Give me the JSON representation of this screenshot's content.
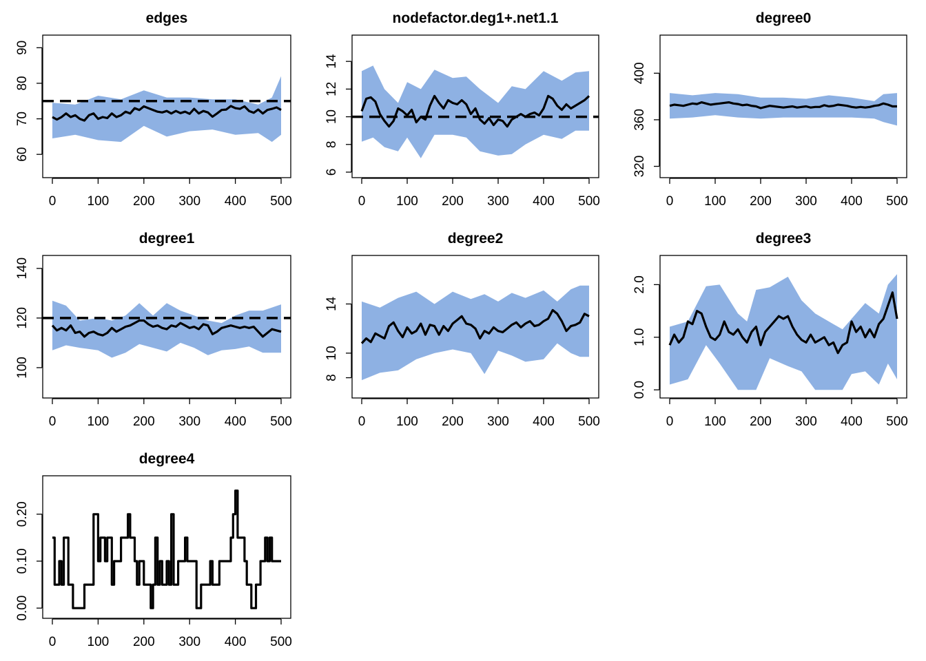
{
  "chart_data": [
    {
      "type": "line",
      "title": "edges",
      "xlim": [
        0,
        500
      ],
      "ylim": [
        55,
        92
      ],
      "x_ticks": [
        "0",
        "100",
        "200",
        "300",
        "400",
        "500"
      ],
      "y_ticks": [
        "60",
        "70",
        "80",
        "90"
      ],
      "target": 75,
      "colors": {
        "band": "#8eb1e3",
        "line": "#000000",
        "target": "#000000"
      },
      "band_x": [
        0,
        50,
        100,
        150,
        200,
        250,
        300,
        350,
        400,
        450,
        480,
        500
      ],
      "band_upper": [
        74.5,
        74,
        76.5,
        75.5,
        78,
        76,
        76,
        75.5,
        75.5,
        74,
        76,
        82
      ],
      "band_lower": [
        64.5,
        65.5,
        64,
        63.5,
        68,
        65,
        66.5,
        67,
        65.5,
        66,
        63.5,
        65.5
      ],
      "series_x": [
        0,
        10,
        20,
        30,
        40,
        50,
        60,
        70,
        80,
        90,
        100,
        110,
        120,
        130,
        140,
        150,
        160,
        170,
        180,
        190,
        200,
        210,
        220,
        230,
        240,
        250,
        260,
        270,
        280,
        290,
        300,
        310,
        320,
        330,
        340,
        350,
        360,
        370,
        380,
        390,
        400,
        410,
        420,
        430,
        440,
        450,
        460,
        470,
        480,
        490,
        500
      ],
      "series_y": [
        70.5,
        69.8,
        70.5,
        71.5,
        70.5,
        71,
        70,
        69.5,
        71,
        71.5,
        70,
        70.5,
        70.2,
        71.5,
        70.5,
        71,
        72,
        71.5,
        73,
        72.5,
        73.5,
        73,
        72.5,
        72,
        71.8,
        72.2,
        71.5,
        72.2,
        71.6,
        72,
        71.4,
        72.8,
        71.5,
        72.2,
        71.8,
        70.6,
        71.5,
        72.5,
        72.6,
        73.6,
        73,
        72.8,
        73.5,
        72.2,
        71.7,
        72.6,
        71.5,
        72.5,
        72.8,
        73.2,
        72.5
      ]
    },
    {
      "type": "line",
      "title": "nodefactor.deg1+.net1.1",
      "xlim": [
        0,
        500
      ],
      "ylim": [
        6,
        15.5
      ],
      "x_ticks": [
        "0",
        "100",
        "200",
        "300",
        "400",
        "500"
      ],
      "y_ticks": [
        "6",
        "8",
        "10",
        "12",
        "14"
      ],
      "target": 10,
      "colors": {
        "band": "#8eb1e3",
        "line": "#000000",
        "target": "#000000"
      },
      "band_x": [
        0,
        25,
        50,
        80,
        100,
        130,
        160,
        200,
        230,
        260,
        300,
        330,
        360,
        400,
        440,
        470,
        500
      ],
      "band_upper": [
        13.3,
        13.7,
        12,
        11,
        12.5,
        12,
        13.4,
        12.8,
        12.9,
        12,
        11,
        12.2,
        12,
        13.3,
        12.6,
        13.2,
        13.3
      ],
      "band_lower": [
        8.2,
        8.5,
        7.8,
        7.5,
        8.5,
        7,
        8.7,
        8.7,
        8.5,
        7.5,
        7.2,
        7.3,
        8,
        8.7,
        8.4,
        9,
        9
      ],
      "series_x": [
        0,
        10,
        20,
        30,
        40,
        50,
        60,
        70,
        80,
        90,
        100,
        110,
        120,
        130,
        140,
        150,
        160,
        170,
        180,
        190,
        200,
        210,
        220,
        230,
        240,
        250,
        260,
        270,
        280,
        290,
        300,
        310,
        320,
        330,
        340,
        350,
        360,
        370,
        380,
        390,
        400,
        410,
        420,
        430,
        440,
        450,
        460,
        470,
        480,
        490,
        500
      ],
      "series_y": [
        10.4,
        11.3,
        11.4,
        11.1,
        10.2,
        9.7,
        9.3,
        9.7,
        10.6,
        10.4,
        10.1,
        10.5,
        9.6,
        10,
        9.8,
        10.8,
        11.5,
        11,
        10.6,
        11.2,
        11,
        10.9,
        11.2,
        10.9,
        10.2,
        10.6,
        9.8,
        9.5,
        9.9,
        9.4,
        9.8,
        9.7,
        9.3,
        9.8,
        10,
        10.2,
        10,
        10.2,
        10.3,
        10.1,
        10.6,
        11.5,
        11.3,
        10.8,
        10.5,
        10.9,
        10.6,
        10.8,
        11,
        11.2,
        11.5
      ]
    },
    {
      "type": "line",
      "title": "degree0",
      "xlim": [
        0,
        500
      ],
      "ylim": [
        315,
        428
      ],
      "x_ticks": [
        "0",
        "100",
        "200",
        "300",
        "400",
        "500"
      ],
      "y_ticks": [
        "320",
        "360",
        "400"
      ],
      "target": null,
      "colors": {
        "band": "#8eb1e3",
        "line": "#000000",
        "target": "#000000"
      },
      "band_x": [
        0,
        50,
        100,
        150,
        200,
        250,
        300,
        350,
        400,
        450,
        470,
        500
      ],
      "band_upper": [
        383,
        381,
        383,
        382,
        379,
        379,
        378,
        381,
        379,
        376,
        382,
        383
      ],
      "band_lower": [
        361,
        362,
        364,
        362,
        361,
        362,
        362,
        362,
        362,
        361,
        358,
        355
      ],
      "series_x": [
        0,
        10,
        20,
        30,
        40,
        50,
        60,
        70,
        80,
        90,
        100,
        110,
        120,
        130,
        140,
        150,
        160,
        170,
        180,
        190,
        200,
        210,
        220,
        230,
        240,
        250,
        260,
        270,
        280,
        290,
        300,
        310,
        320,
        330,
        340,
        350,
        360,
        370,
        380,
        390,
        400,
        410,
        420,
        430,
        440,
        450,
        460,
        470,
        480,
        490,
        500
      ],
      "series_y": [
        372,
        373,
        372.5,
        372,
        373,
        374,
        373.5,
        375,
        374,
        373,
        373.5,
        374,
        374.5,
        375,
        374,
        373.5,
        372.5,
        373,
        372,
        371.5,
        370,
        371,
        372,
        371.5,
        371,
        370.5,
        371,
        371.5,
        370.5,
        371,
        371.5,
        370.5,
        371,
        371,
        372.5,
        371.5,
        372,
        373,
        372.5,
        372,
        371,
        370.5,
        371,
        370.5,
        371,
        372,
        372.5,
        374,
        373,
        371.5,
        371.5
      ]
    },
    {
      "type": "line",
      "title": "degree1",
      "xlim": [
        0,
        500
      ],
      "ylim": [
        90,
        143
      ],
      "x_ticks": [
        "0",
        "100",
        "200",
        "300",
        "400",
        "500"
      ],
      "y_ticks": [
        "100",
        "120",
        "140"
      ],
      "target": 120,
      "colors": {
        "band": "#8eb1e3",
        "line": "#000000",
        "target": "#000000"
      },
      "band_x": [
        0,
        30,
        60,
        100,
        130,
        160,
        190,
        220,
        250,
        280,
        310,
        340,
        370,
        400,
        430,
        460,
        500
      ],
      "band_upper": [
        127,
        125,
        119,
        120,
        119,
        121,
        126,
        121,
        126,
        123,
        121,
        119,
        118,
        121,
        123,
        123,
        125.5
      ],
      "band_lower": [
        107,
        109,
        108,
        107,
        104,
        106,
        109.5,
        108,
        106.5,
        110,
        108,
        105,
        107,
        107.5,
        108.5,
        106,
        106
      ],
      "series_x": [
        0,
        10,
        20,
        30,
        40,
        50,
        60,
        70,
        80,
        90,
        100,
        110,
        120,
        130,
        140,
        150,
        160,
        170,
        180,
        190,
        200,
        210,
        220,
        230,
        240,
        250,
        260,
        270,
        280,
        290,
        300,
        310,
        320,
        330,
        340,
        350,
        360,
        370,
        380,
        390,
        400,
        410,
        420,
        430,
        440,
        450,
        460,
        470,
        480,
        490,
        500
      ],
      "series_y": [
        117,
        115,
        116,
        115,
        117,
        114,
        114.5,
        112.5,
        114,
        114.5,
        113.5,
        113,
        114,
        116,
        114.5,
        115.5,
        116.5,
        117,
        118,
        119,
        119,
        117.5,
        116.5,
        117,
        116,
        115.5,
        117,
        116.5,
        118,
        117,
        116,
        116.5,
        115.5,
        117.5,
        117,
        113.5,
        114.5,
        116,
        116.5,
        117,
        116.5,
        116,
        116.5,
        116,
        116.5,
        114.5,
        112.5,
        114,
        115.5,
        115,
        114.5
      ]
    },
    {
      "type": "line",
      "title": "degree2",
      "xlim": [
        0,
        500
      ],
      "ylim": [
        6.8,
        17.5
      ],
      "x_ticks": [
        "0",
        "100",
        "200",
        "300",
        "400",
        "500"
      ],
      "y_ticks": [
        "8",
        "10",
        "14"
      ],
      "target": null,
      "colors": {
        "band": "#8eb1e3",
        "line": "#000000",
        "target": "#000000"
      },
      "band_x": [
        0,
        40,
        80,
        120,
        160,
        200,
        240,
        270,
        300,
        330,
        360,
        400,
        430,
        460,
        480,
        500
      ],
      "band_upper": [
        14.2,
        13.7,
        14.5,
        15,
        14,
        15,
        14.4,
        14.8,
        14.2,
        14.9,
        14.5,
        15.1,
        14.2,
        15.2,
        15.5,
        15.5
      ],
      "band_lower": [
        7.8,
        8.4,
        8.6,
        9.5,
        10,
        10.3,
        10,
        8.3,
        10.2,
        9.8,
        9.3,
        9.5,
        10.8,
        10,
        9.7,
        9.7
      ],
      "series_x": [
        0,
        10,
        20,
        30,
        40,
        50,
        60,
        70,
        80,
        90,
        100,
        110,
        120,
        130,
        140,
        150,
        160,
        170,
        180,
        190,
        200,
        210,
        220,
        230,
        240,
        250,
        260,
        270,
        280,
        290,
        300,
        310,
        320,
        330,
        340,
        350,
        360,
        370,
        380,
        390,
        400,
        410,
        420,
        430,
        440,
        450,
        460,
        470,
        480,
        490,
        500
      ],
      "series_y": [
        10.8,
        11.2,
        10.9,
        11.6,
        11.4,
        11.2,
        12.2,
        12.5,
        11.8,
        11.3,
        12.1,
        11.6,
        11.8,
        12.4,
        11.5,
        12.3,
        12.2,
        11.5,
        12.2,
        11.8,
        12.4,
        12.7,
        13,
        12.4,
        12.3,
        12,
        11.2,
        11.8,
        11.6,
        12.1,
        11.8,
        11.7,
        12,
        12.3,
        12.5,
        12.1,
        12.4,
        12.6,
        12.2,
        12.3,
        12.6,
        12.8,
        13.5,
        13.2,
        12.6,
        11.8,
        12.2,
        12.3,
        12.5,
        13.2,
        13
      ]
    },
    {
      "type": "line",
      "title": "degree3",
      "xlim": [
        0,
        500
      ],
      "ylim": [
        -0.05,
        2.45
      ],
      "x_ticks": [
        "0",
        "100",
        "200",
        "300",
        "400",
        "500"
      ],
      "y_ticks": [
        "0.0",
        "1.0",
        "2.0"
      ],
      "target": null,
      "colors": {
        "band": "#8eb1e3",
        "line": "#000000",
        "target": "#000000"
      },
      "band_x": [
        0,
        40,
        80,
        110,
        150,
        170,
        190,
        220,
        260,
        290,
        320,
        360,
        380,
        400,
        430,
        460,
        480,
        500
      ],
      "band_upper": [
        1.2,
        1.3,
        1.97,
        2,
        1.45,
        1.3,
        1.9,
        1.95,
        2.15,
        1.7,
        1.45,
        1.25,
        1.15,
        1.35,
        1.65,
        1.45,
        2,
        2.2
      ],
      "band_lower": [
        0.1,
        0.2,
        0.85,
        0.5,
        0.0,
        0.0,
        0.0,
        0.6,
        0.45,
        0.35,
        0.0,
        0.0,
        0.0,
        0.3,
        0.35,
        0.1,
        0.5,
        0.2
      ],
      "series_x": [
        0,
        10,
        20,
        30,
        40,
        50,
        60,
        70,
        80,
        90,
        100,
        110,
        120,
        130,
        140,
        150,
        160,
        170,
        180,
        190,
        200,
        210,
        220,
        230,
        240,
        250,
        260,
        270,
        280,
        290,
        300,
        310,
        320,
        330,
        340,
        350,
        360,
        370,
        380,
        390,
        400,
        410,
        420,
        430,
        440,
        450,
        460,
        470,
        480,
        490,
        500
      ],
      "series_y": [
        0.85,
        1.05,
        0.9,
        1.0,
        1.3,
        1.25,
        1.5,
        1.45,
        1.2,
        1.0,
        0.95,
        1.05,
        1.3,
        1.1,
        1.05,
        1.15,
        1.0,
        0.9,
        1.1,
        1.2,
        0.85,
        1.1,
        1.2,
        1.3,
        1.4,
        1.35,
        1.4,
        1.2,
        1.05,
        0.95,
        0.9,
        1.05,
        0.9,
        0.95,
        1.0,
        0.85,
        0.9,
        0.7,
        0.85,
        0.9,
        1.3,
        1.1,
        1.2,
        1.0,
        1.15,
        1.0,
        1.25,
        1.35,
        1.6,
        1.85,
        1.35
      ]
    },
    {
      "type": "line",
      "title": "degree4",
      "xlim": [
        0,
        500
      ],
      "ylim": [
        -0.01,
        0.27
      ],
      "x_ticks": [
        "0",
        "100",
        "200",
        "300",
        "400",
        "500"
      ],
      "y_ticks": [
        "0.00",
        "0.10",
        "0.20"
      ],
      "target": null,
      "colors": {
        "band": "#8eb1e3",
        "line": "#000000",
        "target": "#000000"
      },
      "band_x": [],
      "band_upper": [],
      "band_lower": [],
      "series_x": [
        0,
        5,
        10,
        15,
        20,
        25,
        30,
        35,
        40,
        45,
        50,
        55,
        60,
        65,
        70,
        75,
        80,
        85,
        90,
        95,
        100,
        105,
        110,
        115,
        120,
        125,
        130,
        135,
        140,
        145,
        150,
        155,
        160,
        165,
        170,
        175,
        180,
        185,
        190,
        195,
        200,
        205,
        210,
        215,
        220,
        225,
        230,
        235,
        240,
        245,
        250,
        255,
        260,
        265,
        270,
        275,
        280,
        285,
        290,
        295,
        300,
        305,
        310,
        315,
        320,
        325,
        330,
        335,
        340,
        345,
        350,
        355,
        360,
        365,
        370,
        375,
        380,
        385,
        390,
        395,
        400,
        405,
        410,
        415,
        420,
        425,
        430,
        435,
        440,
        445,
        450,
        455,
        460,
        465,
        470,
        475,
        480,
        485,
        490,
        495,
        500
      ],
      "series_y": [
        0.15,
        0.05,
        0.05,
        0.1,
        0.05,
        0.15,
        0.15,
        0.05,
        0.05,
        0.0,
        0.0,
        0.0,
        0.0,
        0.0,
        0.05,
        0.05,
        0.05,
        0.05,
        0.2,
        0.2,
        0.1,
        0.15,
        0.15,
        0.1,
        0.15,
        0.15,
        0.05,
        0.1,
        0.1,
        0.1,
        0.15,
        0.15,
        0.15,
        0.2,
        0.15,
        0.15,
        0.1,
        0.05,
        0.1,
        0.1,
        0.05,
        0.05,
        0.05,
        0.0,
        0.05,
        0.15,
        0.05,
        0.1,
        0.05,
        0.05,
        0.1,
        0.05,
        0.2,
        0.05,
        0.05,
        0.1,
        0.1,
        0.1,
        0.15,
        0.1,
        0.1,
        0.1,
        0.1,
        0.0,
        0.0,
        0.05,
        0.05,
        0.05,
        0.05,
        0.1,
        0.05,
        0.05,
        0.05,
        0.1,
        0.1,
        0.1,
        0.1,
        0.1,
        0.15,
        0.2,
        0.25,
        0.15,
        0.15,
        0.15,
        0.1,
        0.05,
        0.05,
        0.0,
        0.0,
        0.05,
        0.05,
        0.1,
        0.1,
        0.15,
        0.1,
        0.15,
        0.1,
        0.1,
        0.1,
        0.1,
        0.1
      ]
    }
  ]
}
